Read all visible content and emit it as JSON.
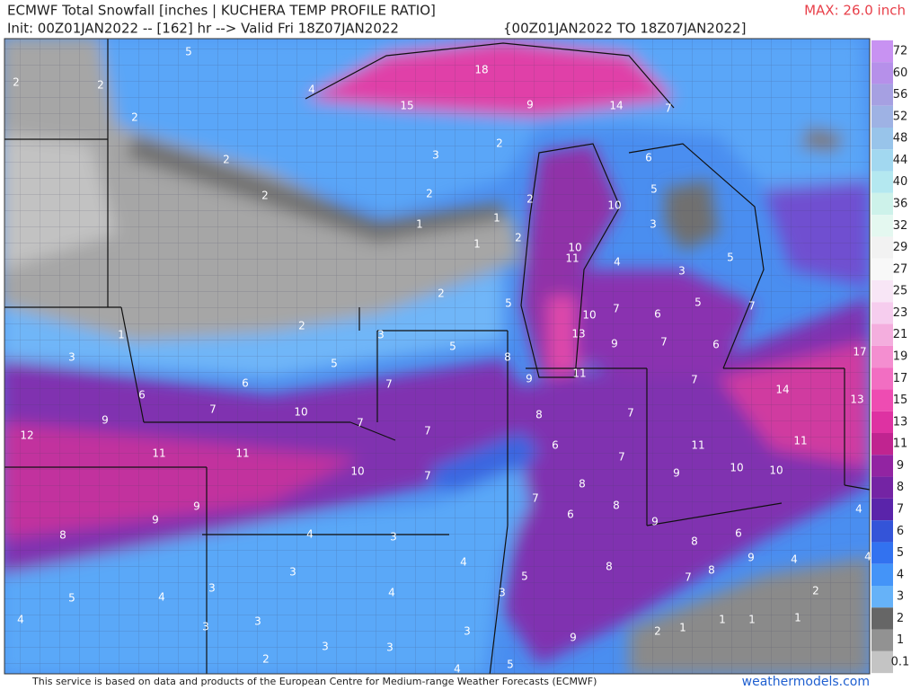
{
  "header": {
    "title": "ECMWF Total Snowfall [inches | KUCHERA TEMP PROFILE RATIO]",
    "init": "Init: 00Z01JAN2022 -- [162] hr --> Valid Fri 18Z07JAN2022",
    "period": "{00Z01JAN2022 TO 18Z07JAN2022]",
    "max": "MAX: 26.0 inch"
  },
  "colorbar": {
    "levels": [
      72,
      60,
      56,
      52,
      48,
      44,
      40,
      36,
      32,
      29,
      27,
      25,
      23,
      21,
      19,
      17,
      15,
      13,
      11,
      9,
      8,
      7,
      6,
      5,
      4,
      3,
      2,
      1,
      0.1
    ],
    "colors": [
      "#c892f2",
      "#b690ea",
      "#a6a0e2",
      "#9eb2e4",
      "#98c4ea",
      "#a2d8f0",
      "#b4e8f0",
      "#cdf2ea",
      "#e4f8f0",
      "#f2f2f2",
      "#f8f8f8",
      "#f8e6f6",
      "#f6cdee",
      "#f4aede",
      "#f48ed0",
      "#f26ec2",
      "#ee4cb2",
      "#de32a2",
      "#c02490",
      "#9224a2",
      "#7424a4",
      "#5a24aa",
      "#3454d8",
      "#3272f0",
      "#4494f8",
      "#66b2f8",
      "#666666",
      "#929292",
      "#c4c4c4"
    ]
  },
  "map_labels": [
    "5",
    "2",
    "2",
    "2",
    "2",
    "2",
    "4",
    "18",
    "15",
    "9",
    "14",
    "7",
    "3",
    "2",
    "2",
    "1",
    "1",
    "1",
    "2",
    "2",
    "6",
    "5",
    "10",
    "3",
    "10",
    "11",
    "4",
    "3",
    "5",
    "2",
    "5",
    "10",
    "7",
    "6",
    "5",
    "7",
    "13",
    "9",
    "7",
    "6",
    "1",
    "2",
    "3",
    "5",
    "8",
    "9",
    "11",
    "17",
    "3",
    "5",
    "7",
    "14",
    "6",
    "7",
    "13",
    "6",
    "7",
    "10",
    "9",
    "8",
    "7",
    "7",
    "7",
    "12",
    "11",
    "11",
    "11",
    "11",
    "6",
    "7",
    "10",
    "7",
    "9",
    "10",
    "10",
    "8",
    "7",
    "8",
    "9",
    "9",
    "6",
    "9",
    "4",
    "8",
    "4",
    "3",
    "8",
    "6",
    "4",
    "8",
    "9",
    "4",
    "4",
    "3",
    "5",
    "8",
    "7",
    "3",
    "2",
    "5",
    "4",
    "4",
    "3",
    "4",
    "3",
    "1",
    "1",
    "1",
    "3",
    "3",
    "2",
    "1",
    "9",
    "3",
    "3",
    "2",
    "5",
    "4"
  ],
  "footer": {
    "credit": "This service is based on data and products of the European Centre for Medium-range Weather Forecasts (ECMWF)",
    "site": "weathermodels.com"
  }
}
